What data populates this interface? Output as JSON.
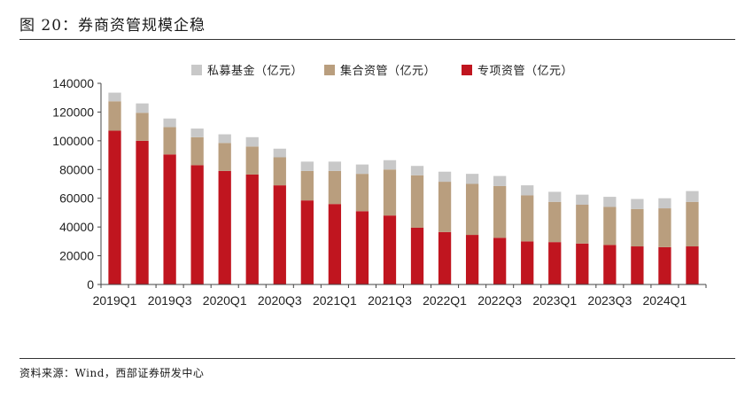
{
  "figure": {
    "title": "图 20：券商资管规模企稳",
    "source": "资料来源：Wind，西部证券研发中心"
  },
  "chart_data": {
    "type": "bar",
    "stacked": true,
    "categories": [
      "2019Q1",
      "2019Q2",
      "2019Q3",
      "2019Q4",
      "2020Q1",
      "2020Q2",
      "2020Q3",
      "2020Q4",
      "2021Q1",
      "2021Q2",
      "2021Q3",
      "2021Q4",
      "2022Q1",
      "2022Q2",
      "2022Q3",
      "2022Q4",
      "2023Q1",
      "2023Q2",
      "2023Q3",
      "2023Q4",
      "2024Q1",
      "2024Q2"
    ],
    "x_tick_labels": [
      "2019Q1",
      "",
      "2019Q3",
      "",
      "2020Q1",
      "",
      "2020Q3",
      "",
      "2021Q1",
      "",
      "2021Q3",
      "",
      "2022Q1",
      "",
      "2022Q3",
      "",
      "2023Q1",
      "",
      "2023Q3",
      "",
      "2024Q1",
      ""
    ],
    "series": [
      {
        "name": "专项资管（亿元）",
        "color": "#c0151f",
        "values": [
          107000,
          100000,
          90500,
          83000,
          79000,
          76500,
          69000,
          58500,
          56000,
          51000,
          48000,
          39500,
          36500,
          34500,
          32500,
          30000,
          29500,
          28500,
          27500,
          26500,
          26000,
          26500
        ]
      },
      {
        "name": "集合资管（亿元）",
        "color": "#b99e7e",
        "values": [
          20500,
          19500,
          19000,
          19500,
          19500,
          19500,
          19500,
          20500,
          23000,
          26000,
          32000,
          36500,
          35000,
          35500,
          36000,
          32000,
          28000,
          27000,
          26500,
          26000,
          27000,
          31000
        ]
      },
      {
        "name": "私募基金（亿元）",
        "color": "#c8c8c8",
        "values": [
          6000,
          6500,
          6000,
          6000,
          6000,
          6500,
          6000,
          6500,
          6500,
          6500,
          6500,
          6500,
          7000,
          7000,
          7000,
          7000,
          7000,
          7000,
          7000,
          7000,
          7000,
          7500
        ]
      }
    ],
    "legend_order": [
      "私募基金（亿元）",
      "集合资管（亿元）",
      "专项资管（亿元）"
    ],
    "legend_position": "top-center",
    "y_ticks": [
      "0",
      "20000",
      "40000",
      "60000",
      "80000",
      "100000",
      "120000",
      "140000"
    ],
    "ylim": [
      0,
      140000
    ],
    "grid": false,
    "xlabel": "",
    "ylabel": ""
  }
}
